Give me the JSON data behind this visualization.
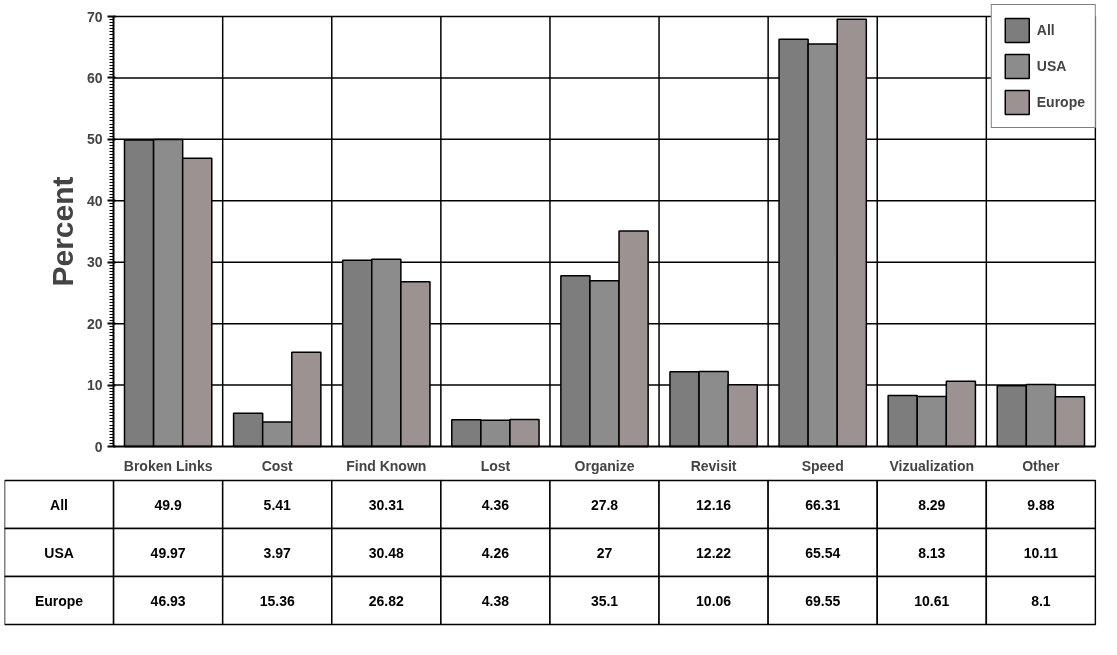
{
  "chart_data": {
    "type": "bar",
    "ylabel": "Percent",
    "categories": [
      "Broken Links",
      "Cost",
      "Find Known",
      "Lost",
      "Organize",
      "Revisit",
      "Speed",
      "Vizualization",
      "Other"
    ],
    "series": [
      {
        "name": "All",
        "color": "#7d7d7d",
        "values": [
          49.9,
          5.41,
          30.31,
          4.36,
          27.8,
          12.16,
          66.31,
          8.29,
          9.88
        ]
      },
      {
        "name": "USA",
        "color": "#8c8c8c",
        "values": [
          49.97,
          3.97,
          30.48,
          4.26,
          27,
          12.22,
          65.54,
          8.13,
          10.11
        ]
      },
      {
        "name": "Europe",
        "color": "#9c9292",
        "values": [
          46.93,
          15.36,
          26.82,
          4.38,
          35.1,
          10.06,
          69.55,
          10.61,
          8.1
        ]
      }
    ],
    "ylim": [
      0,
      70
    ],
    "yticks": [
      0,
      10,
      20,
      30,
      40,
      50,
      60,
      70
    ],
    "grid": true,
    "legend": "top right",
    "data_labels": true
  }
}
